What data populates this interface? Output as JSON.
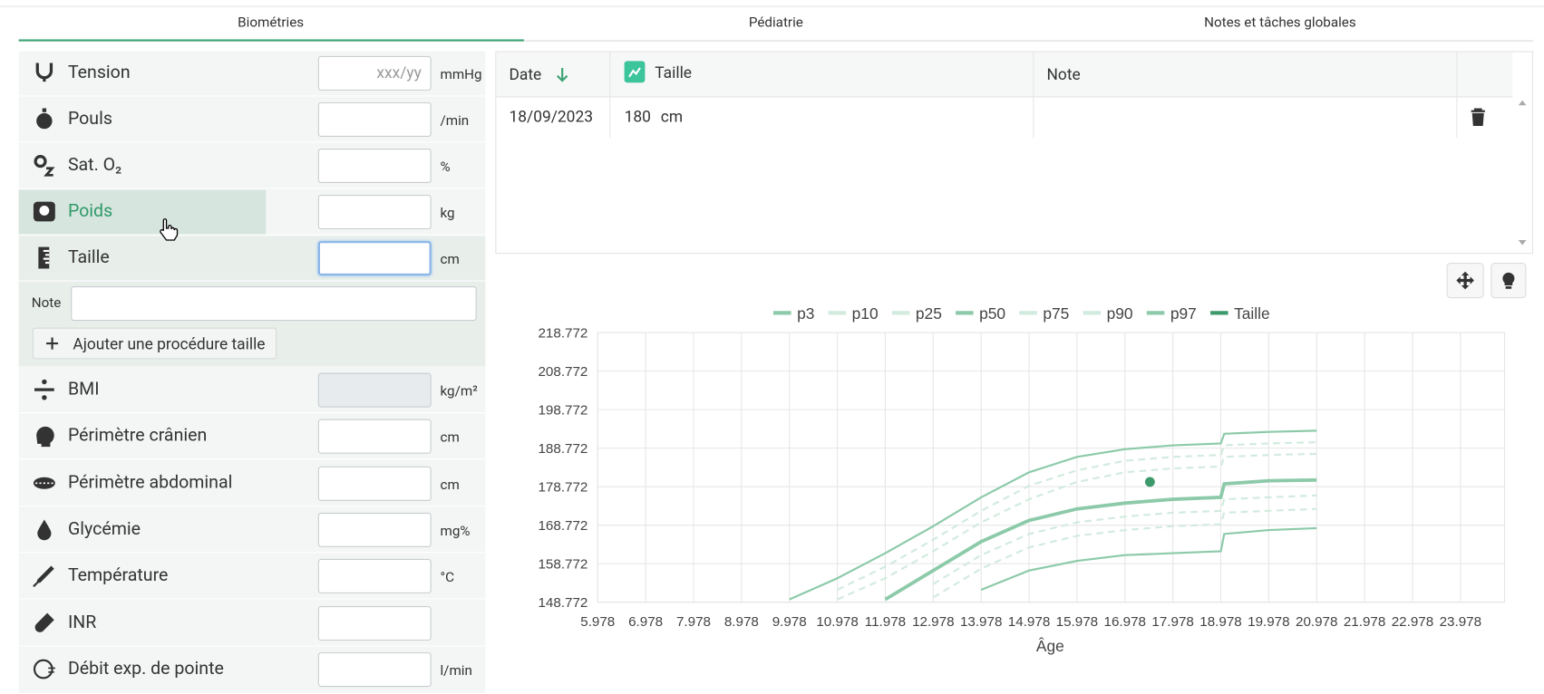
{
  "tabs": [
    "Biométries",
    "Pédiatrie",
    "Notes et tâches globales"
  ],
  "fields": [
    {
      "label": "Tension",
      "placeholder": "xxx/yy",
      "unit": "mmHg"
    },
    {
      "label": "Pouls",
      "unit": "/min"
    },
    {
      "label": "Sat. O₂",
      "unit": "%"
    },
    {
      "label": "Poids",
      "unit": "kg"
    },
    {
      "label": "Taille",
      "unit": "cm"
    },
    {
      "label": "BMI",
      "unit": "kg/m²"
    },
    {
      "label": "Périmètre crânien",
      "unit": "cm"
    },
    {
      "label": "Périmètre abdominal",
      "unit": "cm"
    },
    {
      "label": "Glycémie",
      "unit": "mg%"
    },
    {
      "label": "Température",
      "unit": "°C"
    },
    {
      "label": "INR"
    },
    {
      "label": "Débit exp. de pointe",
      "unit": "l/min"
    }
  ],
  "note_label": "Note",
  "add_button": "Ajouter une procédure taille",
  "table": {
    "headers": [
      "Date",
      "Taille",
      "Note"
    ],
    "rows": [
      {
        "date": "18/09/2023",
        "value": "180",
        "unit": "cm",
        "note": ""
      }
    ]
  },
  "chart_data": {
    "type": "line",
    "x_label": "Âge",
    "x": [
      9.978,
      10.978,
      11.978,
      12.978,
      13.978,
      14.978,
      15.978,
      16.978,
      17.978,
      18.978,
      19.05,
      19.978,
      20.978
    ],
    "xlim": [
      5.978,
      24.9
    ],
    "xticks": [
      5.978,
      6.978,
      7.978,
      8.978,
      9.978,
      10.978,
      11.978,
      12.978,
      13.978,
      14.978,
      15.978,
      16.978,
      17.978,
      18.978,
      19.978,
      20.978,
      21.978,
      22.978,
      23.978
    ],
    "ylim": [
      148.772,
      218.772
    ],
    "yticks": [
      148.772,
      158.772,
      168.772,
      178.772,
      188.772,
      198.772,
      208.772,
      218.772
    ],
    "grid": true,
    "series": [
      {
        "name": "p3",
        "color": "#8ccaa9",
        "dashed": false,
        "values": [
          null,
          null,
          null,
          null,
          152,
          157,
          159.5,
          161,
          161.5,
          162,
          166.5,
          167.5,
          168
        ]
      },
      {
        "name": "p10",
        "color": "#d2ebde",
        "dashed": true,
        "values": [
          null,
          null,
          null,
          150,
          157.5,
          163,
          166,
          167.5,
          168.5,
          169,
          172,
          172.5,
          173
        ]
      },
      {
        "name": "p25",
        "color": "#d2ebde",
        "dashed": true,
        "values": [
          null,
          null,
          null,
          153.5,
          161,
          166.5,
          169.5,
          171,
          172,
          172.5,
          175.5,
          176,
          176.5
        ]
      },
      {
        "name": "p50",
        "color": "#8ccaa9",
        "dashed": false,
        "thick": true,
        "values": [
          null,
          null,
          149.5,
          157,
          164.5,
          170,
          173,
          174.5,
          175.5,
          176,
          179.5,
          180.3,
          180.5
        ]
      },
      {
        "name": "p75",
        "color": "#d2ebde",
        "dashed": true,
        "values": [
          null,
          149.5,
          155,
          162,
          169.5,
          175.5,
          180,
          182.5,
          183.5,
          184,
          186.5,
          187,
          187.3
        ]
      },
      {
        "name": "p90",
        "color": "#d2ebde",
        "dashed": true,
        "values": [
          null,
          152,
          158,
          165,
          172.5,
          179,
          183,
          185.5,
          186.5,
          187,
          189.5,
          190,
          190.3
        ]
      },
      {
        "name": "p97",
        "color": "#8ccaa9",
        "dashed": false,
        "values": [
          149.5,
          155,
          161.5,
          168.5,
          176,
          182.5,
          186.5,
          188.5,
          189.5,
          190,
          192.5,
          193,
          193.3
        ]
      },
      {
        "name": "Taille",
        "color": "#3d9a6c",
        "marker": true,
        "x": [
          17.5
        ],
        "values": [
          180
        ]
      }
    ]
  }
}
